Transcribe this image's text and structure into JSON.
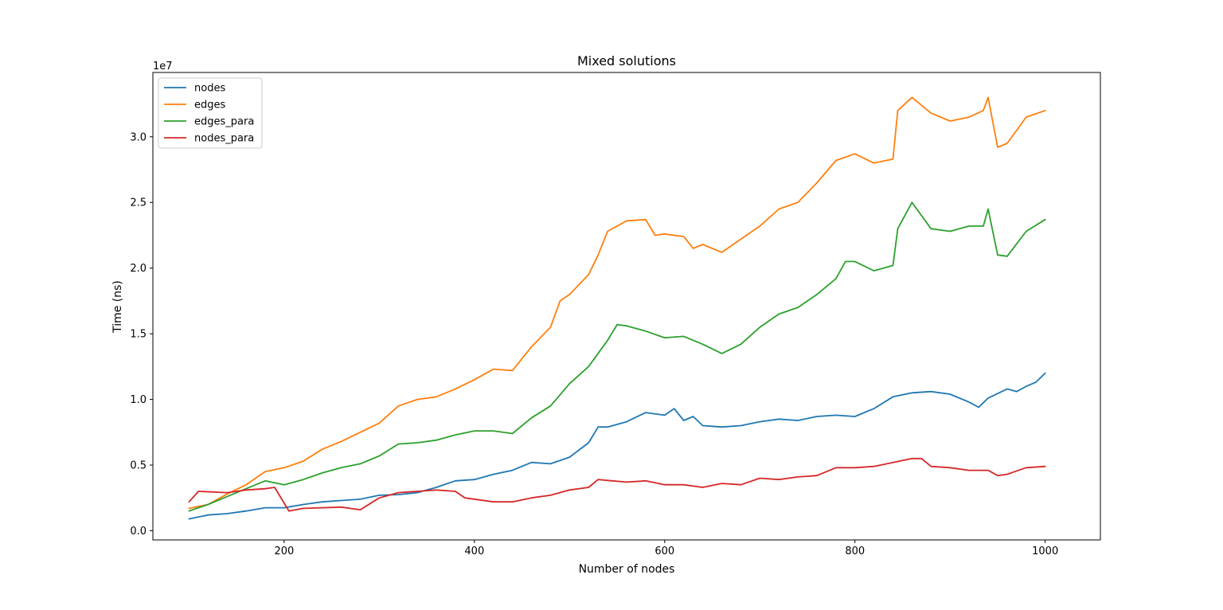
{
  "chart_data": {
    "type": "line",
    "title": "Mixed solutions",
    "xlabel": "Number of nodes",
    "ylabel": "Time (ns)",
    "y_offset_text": "1e7",
    "xlim": [
      62,
      1058
    ],
    "ylim": [
      -700000,
      34900000
    ],
    "xticks": [
      200,
      400,
      600,
      800,
      1000
    ],
    "xtick_labels": [
      "200",
      "400",
      "600",
      "800",
      "1000"
    ],
    "yticks": [
      0,
      5000000,
      10000000,
      15000000,
      20000000,
      25000000,
      30000000
    ],
    "ytick_labels": [
      "0.0",
      "0.5",
      "1.0",
      "1.5",
      "2.0",
      "2.5",
      "3.0"
    ],
    "grid": false,
    "legend_position": "upper left",
    "series": [
      {
        "name": "nodes",
        "color": "#1f77b4",
        "points": [
          [
            100,
            900000
          ],
          [
            120,
            1200000
          ],
          [
            140,
            1300000
          ],
          [
            160,
            1500000
          ],
          [
            180,
            1750000
          ],
          [
            200,
            1750000
          ],
          [
            220,
            2000000
          ],
          [
            240,
            2200000
          ],
          [
            260,
            2300000
          ],
          [
            280,
            2400000
          ],
          [
            300,
            2700000
          ],
          [
            320,
            2750000
          ],
          [
            340,
            2900000
          ],
          [
            360,
            3300000
          ],
          [
            380,
            3800000
          ],
          [
            400,
            3900000
          ],
          [
            420,
            4300000
          ],
          [
            440,
            4600000
          ],
          [
            460,
            5200000
          ],
          [
            480,
            5100000
          ],
          [
            500,
            5600000
          ],
          [
            520,
            6700000
          ],
          [
            530,
            7900000
          ],
          [
            540,
            7900000
          ],
          [
            560,
            8300000
          ],
          [
            580,
            9000000
          ],
          [
            600,
            8800000
          ],
          [
            610,
            9300000
          ],
          [
            620,
            8400000
          ],
          [
            630,
            8700000
          ],
          [
            640,
            8000000
          ],
          [
            660,
            7900000
          ],
          [
            680,
            8000000
          ],
          [
            700,
            8300000
          ],
          [
            720,
            8500000
          ],
          [
            740,
            8400000
          ],
          [
            760,
            8700000
          ],
          [
            780,
            8800000
          ],
          [
            800,
            8700000
          ],
          [
            820,
            9300000
          ],
          [
            840,
            10200000
          ],
          [
            860,
            10500000
          ],
          [
            880,
            10600000
          ],
          [
            900,
            10400000
          ],
          [
            920,
            9800000
          ],
          [
            930,
            9400000
          ],
          [
            940,
            10100000
          ],
          [
            960,
            10800000
          ],
          [
            970,
            10600000
          ],
          [
            980,
            11000000
          ],
          [
            990,
            11300000
          ],
          [
            1000,
            12000000
          ]
        ]
      },
      {
        "name": "edges",
        "color": "#ff7f0e",
        "points": [
          [
            100,
            1700000
          ],
          [
            120,
            2000000
          ],
          [
            140,
            2800000
          ],
          [
            160,
            3500000
          ],
          [
            180,
            4500000
          ],
          [
            200,
            4800000
          ],
          [
            220,
            5300000
          ],
          [
            240,
            6200000
          ],
          [
            260,
            6800000
          ],
          [
            280,
            7500000
          ],
          [
            300,
            8200000
          ],
          [
            320,
            9500000
          ],
          [
            340,
            10000000
          ],
          [
            360,
            10200000
          ],
          [
            380,
            10800000
          ],
          [
            400,
            11500000
          ],
          [
            420,
            12300000
          ],
          [
            440,
            12200000
          ],
          [
            460,
            14000000
          ],
          [
            480,
            15500000
          ],
          [
            490,
            17500000
          ],
          [
            500,
            18000000
          ],
          [
            520,
            19500000
          ],
          [
            530,
            21000000
          ],
          [
            540,
            22800000
          ],
          [
            560,
            23600000
          ],
          [
            580,
            23700000
          ],
          [
            590,
            22500000
          ],
          [
            600,
            22600000
          ],
          [
            620,
            22400000
          ],
          [
            630,
            21500000
          ],
          [
            640,
            21800000
          ],
          [
            660,
            21200000
          ],
          [
            680,
            22200000
          ],
          [
            700,
            23200000
          ],
          [
            720,
            24500000
          ],
          [
            740,
            25000000
          ],
          [
            760,
            26500000
          ],
          [
            780,
            28200000
          ],
          [
            800,
            28700000
          ],
          [
            820,
            28000000
          ],
          [
            840,
            28300000
          ],
          [
            845,
            32000000
          ],
          [
            860,
            33000000
          ],
          [
            880,
            31800000
          ],
          [
            900,
            31200000
          ],
          [
            920,
            31500000
          ],
          [
            935,
            32000000
          ],
          [
            940,
            33000000
          ],
          [
            950,
            29200000
          ],
          [
            960,
            29500000
          ],
          [
            980,
            31500000
          ],
          [
            1000,
            32000000
          ]
        ]
      },
      {
        "name": "edges_para",
        "color": "#2ca02c",
        "points": [
          [
            100,
            1500000
          ],
          [
            120,
            2000000
          ],
          [
            140,
            2600000
          ],
          [
            160,
            3200000
          ],
          [
            180,
            3800000
          ],
          [
            200,
            3500000
          ],
          [
            220,
            3900000
          ],
          [
            240,
            4400000
          ],
          [
            260,
            4800000
          ],
          [
            280,
            5100000
          ],
          [
            300,
            5700000
          ],
          [
            320,
            6600000
          ],
          [
            340,
            6700000
          ],
          [
            360,
            6900000
          ],
          [
            380,
            7300000
          ],
          [
            400,
            7600000
          ],
          [
            420,
            7600000
          ],
          [
            440,
            7400000
          ],
          [
            460,
            8600000
          ],
          [
            480,
            9500000
          ],
          [
            500,
            11200000
          ],
          [
            520,
            12500000
          ],
          [
            540,
            14500000
          ],
          [
            550,
            15700000
          ],
          [
            560,
            15600000
          ],
          [
            580,
            15200000
          ],
          [
            600,
            14700000
          ],
          [
            620,
            14800000
          ],
          [
            640,
            14200000
          ],
          [
            660,
            13500000
          ],
          [
            680,
            14200000
          ],
          [
            700,
            15500000
          ],
          [
            720,
            16500000
          ],
          [
            740,
            17000000
          ],
          [
            760,
            18000000
          ],
          [
            780,
            19200000
          ],
          [
            790,
            20500000
          ],
          [
            800,
            20500000
          ],
          [
            820,
            19800000
          ],
          [
            840,
            20200000
          ],
          [
            845,
            23000000
          ],
          [
            860,
            25000000
          ],
          [
            880,
            23000000
          ],
          [
            900,
            22800000
          ],
          [
            920,
            23200000
          ],
          [
            935,
            23200000
          ],
          [
            940,
            24500000
          ],
          [
            950,
            21000000
          ],
          [
            960,
            20900000
          ],
          [
            980,
            22800000
          ],
          [
            1000,
            23700000
          ]
        ]
      },
      {
        "name": "nodes_para",
        "color": "#d62728",
        "points": [
          [
            100,
            2200000
          ],
          [
            110,
            3000000
          ],
          [
            140,
            2900000
          ],
          [
            160,
            3100000
          ],
          [
            180,
            3200000
          ],
          [
            190,
            3300000
          ],
          [
            205,
            1500000
          ],
          [
            220,
            1700000
          ],
          [
            260,
            1800000
          ],
          [
            280,
            1600000
          ],
          [
            300,
            2500000
          ],
          [
            320,
            2900000
          ],
          [
            340,
            3000000
          ],
          [
            360,
            3100000
          ],
          [
            380,
            3000000
          ],
          [
            390,
            2500000
          ],
          [
            420,
            2200000
          ],
          [
            440,
            2200000
          ],
          [
            460,
            2500000
          ],
          [
            480,
            2700000
          ],
          [
            500,
            3100000
          ],
          [
            520,
            3300000
          ],
          [
            530,
            3900000
          ],
          [
            560,
            3700000
          ],
          [
            580,
            3800000
          ],
          [
            600,
            3500000
          ],
          [
            620,
            3500000
          ],
          [
            640,
            3300000
          ],
          [
            660,
            3600000
          ],
          [
            680,
            3500000
          ],
          [
            700,
            4000000
          ],
          [
            720,
            3900000
          ],
          [
            740,
            4100000
          ],
          [
            760,
            4200000
          ],
          [
            780,
            4800000
          ],
          [
            800,
            4800000
          ],
          [
            820,
            4900000
          ],
          [
            840,
            5200000
          ],
          [
            860,
            5500000
          ],
          [
            870,
            5500000
          ],
          [
            880,
            4900000
          ],
          [
            900,
            4800000
          ],
          [
            920,
            4600000
          ],
          [
            940,
            4600000
          ],
          [
            950,
            4200000
          ],
          [
            960,
            4300000
          ],
          [
            980,
            4800000
          ],
          [
            1000,
            4900000
          ]
        ]
      }
    ]
  }
}
